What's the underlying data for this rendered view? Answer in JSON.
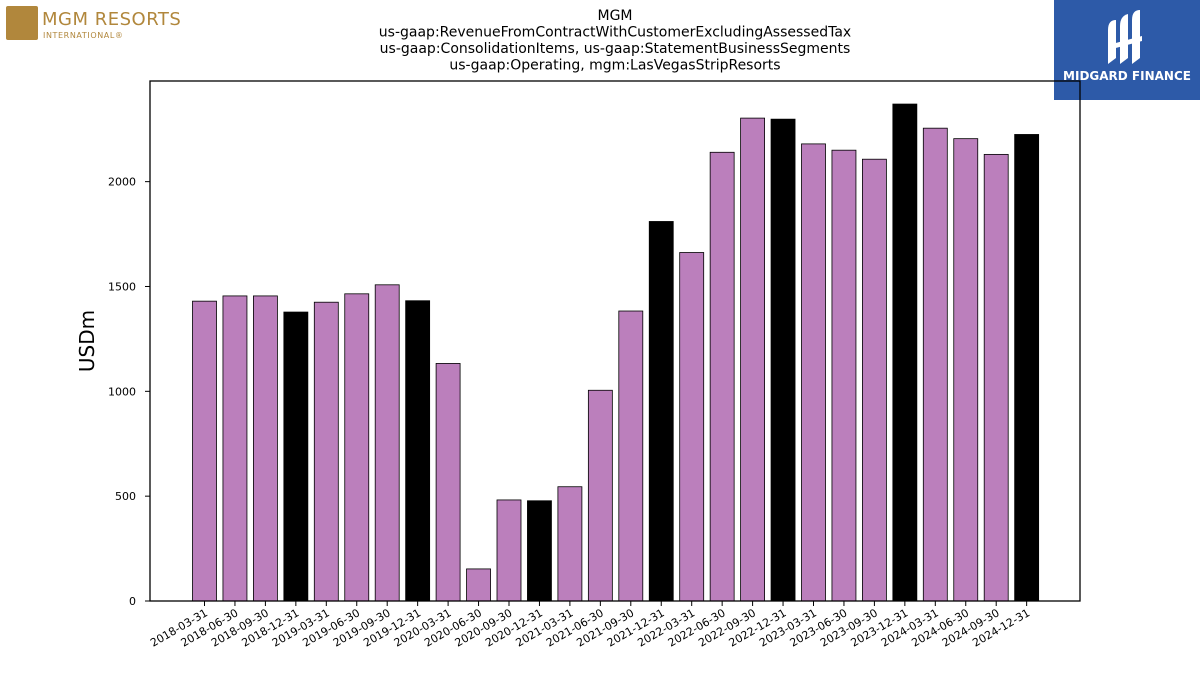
{
  "logos": {
    "left_brand": "MGM RESORTS",
    "left_sub": "INTERNATIONAL®",
    "right_text": "MIDGARD FINANCE"
  },
  "colors": {
    "bar_default": "#bb7fbc",
    "bar_highlight": "#000000",
    "bar_edge": "#000000",
    "logo_gold": "#b1873c",
    "logo_blue": "#2d5aa8"
  },
  "chart_data": {
    "type": "bar",
    "title_lines": [
      "MGM",
      "us-gaap:RevenueFromContractWithCustomerExcludingAssessedTax",
      "us-gaap:ConsolidationItems, us-gaap:StatementBusinessSegments",
      "us-gaap:Operating, mgm:LasVegasStripResorts"
    ],
    "xlabel": "",
    "ylabel": "USDm",
    "ylim": [
      0,
      2480
    ],
    "yticks": [
      0,
      500,
      1000,
      1500,
      2000
    ],
    "grid": false,
    "categories": [
      "2018-03-31",
      "2018-06-30",
      "2018-09-30",
      "2018-12-31",
      "2019-03-31",
      "2019-06-30",
      "2019-09-30",
      "2019-12-31",
      "2020-03-31",
      "2020-06-30",
      "2020-09-30",
      "2020-12-31",
      "2021-03-31",
      "2021-06-30",
      "2021-09-30",
      "2021-12-31",
      "2022-03-31",
      "2022-06-30",
      "2022-09-30",
      "2022-12-31",
      "2023-03-31",
      "2023-06-30",
      "2023-09-30",
      "2023-12-31",
      "2024-03-31",
      "2024-06-30",
      "2024-09-30",
      "2024-12-31"
    ],
    "values": [
      1430,
      1455,
      1455,
      1378,
      1425,
      1465,
      1508,
      1432,
      1133,
      153,
      482,
      478,
      545,
      1005,
      1383,
      1810,
      1662,
      2140,
      2303,
      2298,
      2180,
      2150,
      2107,
      2370,
      2255,
      2205,
      2130,
      2225
    ],
    "highlight": [
      false,
      false,
      false,
      true,
      false,
      false,
      false,
      true,
      false,
      false,
      false,
      true,
      false,
      false,
      false,
      true,
      false,
      false,
      false,
      true,
      false,
      false,
      false,
      true,
      false,
      false,
      false,
      true
    ]
  }
}
